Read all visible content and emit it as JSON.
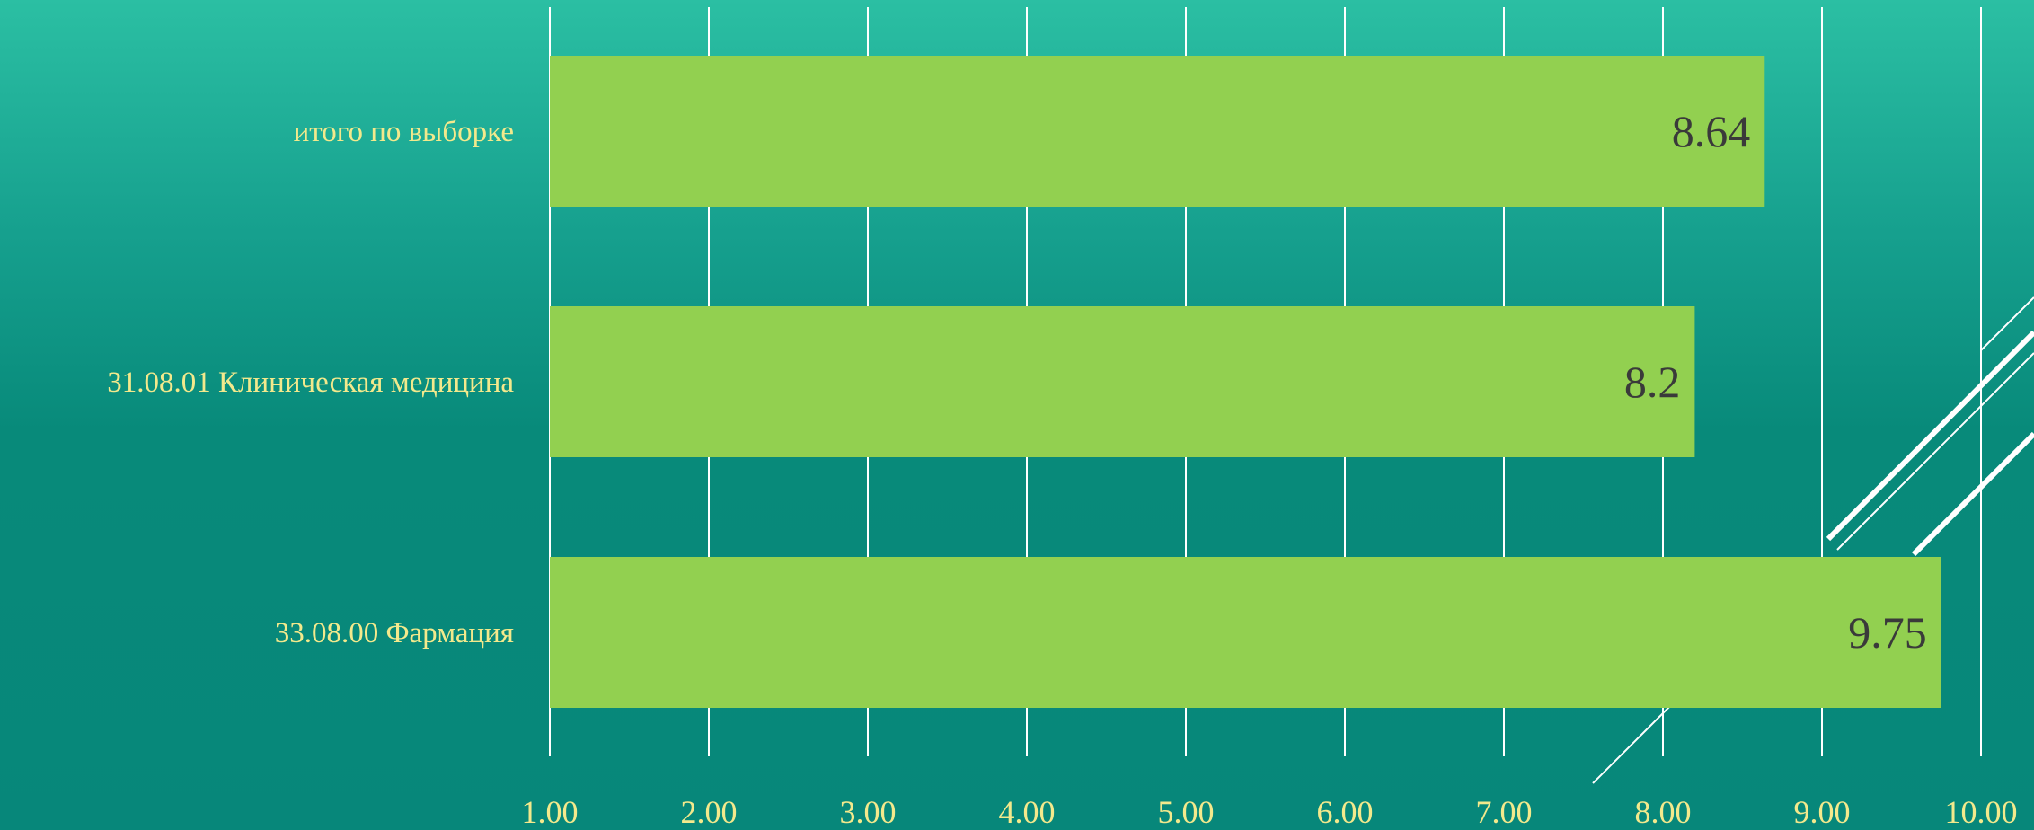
{
  "chart_data": {
    "type": "bar",
    "orientation": "horizontal",
    "categories": [
      "итого по выборке",
      "31.08.01 Клиническая медицина",
      "33.08.00 Фармация"
    ],
    "values": [
      8.64,
      8.2,
      9.75
    ],
    "data_labels": [
      "8.64",
      "8.2",
      "9.75"
    ],
    "xlim": [
      1,
      10
    ],
    "x_ticks": [
      "1.00",
      "2.00",
      "3.00",
      "4.00",
      "5.00",
      "6.00",
      "7.00",
      "8.00",
      "9.00",
      "10.00"
    ],
    "title": "",
    "xlabel": "",
    "ylabel": "",
    "grid": true,
    "legend": "none",
    "colors": {
      "bar": "#92d050",
      "label_text": "#f3e98c",
      "data_label_text": "#3a3a3a",
      "gridline": "#ffffff"
    }
  }
}
